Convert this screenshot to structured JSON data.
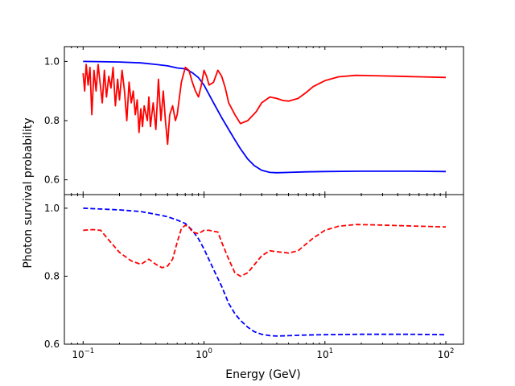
{
  "chart_data": {
    "type": "line",
    "xscale": "log",
    "xlabel": "Energy (GeV)",
    "ylabel": "Photon survival probability",
    "xlim": [
      0.07,
      140
    ],
    "xticks": [
      {
        "value": 0.1,
        "base": "10",
        "exp": "−1"
      },
      {
        "value": 1,
        "base": "10",
        "exp": "0"
      },
      {
        "value": 10,
        "base": "10",
        "exp": "1"
      },
      {
        "value": 100,
        "base": "10",
        "exp": "2"
      }
    ],
    "panels": [
      {
        "name": "top",
        "ylim": [
          0.55,
          1.05
        ],
        "yticks": [
          {
            "value": 0.6,
            "label": "0.6"
          },
          {
            "value": 0.8,
            "label": "0.8"
          },
          {
            "value": 1.0,
            "label": "1.0"
          }
        ],
        "series": [
          {
            "name": "blue-solid",
            "color": "#0000ff",
            "dash": "solid",
            "points": [
              [
                0.1,
                1.0
              ],
              [
                0.2,
                0.998
              ],
              [
                0.3,
                0.995
              ],
              [
                0.4,
                0.99
              ],
              [
                0.5,
                0.985
              ],
              [
                0.6,
                0.978
              ],
              [
                0.7,
                0.975
              ],
              [
                0.8,
                0.962
              ],
              [
                0.9,
                0.945
              ],
              [
                1.0,
                0.92
              ],
              [
                1.2,
                0.86
              ],
              [
                1.4,
                0.81
              ],
              [
                1.6,
                0.77
              ],
              [
                1.8,
                0.735
              ],
              [
                2.0,
                0.705
              ],
              [
                2.3,
                0.67
              ],
              [
                2.6,
                0.648
              ],
              [
                3.0,
                0.632
              ],
              [
                3.5,
                0.625
              ],
              [
                4.0,
                0.624
              ],
              [
                5.0,
                0.625
              ],
              [
                7.0,
                0.627
              ],
              [
                10,
                0.628
              ],
              [
                20,
                0.629
              ],
              [
                50,
                0.629
              ],
              [
                100,
                0.628
              ]
            ]
          },
          {
            "name": "red-solid",
            "color": "#ff0000",
            "dash": "solid",
            "points": [
              [
                0.1,
                0.96
              ],
              [
                0.103,
                0.9
              ],
              [
                0.106,
                0.99
              ],
              [
                0.11,
                0.92
              ],
              [
                0.114,
                0.98
              ],
              [
                0.118,
                0.82
              ],
              [
                0.123,
                0.97
              ],
              [
                0.128,
                0.9
              ],
              [
                0.133,
                0.99
              ],
              [
                0.138,
                0.93
              ],
              [
                0.144,
                0.86
              ],
              [
                0.15,
                0.97
              ],
              [
                0.156,
                0.88
              ],
              [
                0.163,
                0.95
              ],
              [
                0.17,
                0.91
              ],
              [
                0.177,
                0.98
              ],
              [
                0.185,
                0.85
              ],
              [
                0.193,
                0.94
              ],
              [
                0.2,
                0.87
              ],
              [
                0.21,
                0.97
              ],
              [
                0.22,
                0.9
              ],
              [
                0.23,
                0.8
              ],
              [
                0.24,
                0.93
              ],
              [
                0.25,
                0.86
              ],
              [
                0.26,
                0.9
              ],
              [
                0.27,
                0.82
              ],
              [
                0.28,
                0.87
              ],
              [
                0.29,
                0.76
              ],
              [
                0.3,
                0.84
              ],
              [
                0.31,
                0.78
              ],
              [
                0.32,
                0.85
              ],
              [
                0.34,
                0.8
              ],
              [
                0.35,
                0.88
              ],
              [
                0.36,
                0.78
              ],
              [
                0.38,
                0.86
              ],
              [
                0.4,
                0.77
              ],
              [
                0.42,
                0.94
              ],
              [
                0.44,
                0.8
              ],
              [
                0.46,
                0.9
              ],
              [
                0.48,
                0.8
              ],
              [
                0.5,
                0.72
              ],
              [
                0.52,
                0.82
              ],
              [
                0.55,
                0.85
              ],
              [
                0.58,
                0.8
              ],
              [
                0.6,
                0.82
              ],
              [
                0.65,
                0.93
              ],
              [
                0.7,
                0.98
              ],
              [
                0.75,
                0.97
              ],
              [
                0.8,
                0.93
              ],
              [
                0.85,
                0.9
              ],
              [
                0.9,
                0.88
              ],
              [
                0.95,
                0.92
              ],
              [
                1.0,
                0.97
              ],
              [
                1.05,
                0.95
              ],
              [
                1.1,
                0.92
              ],
              [
                1.2,
                0.93
              ],
              [
                1.3,
                0.97
              ],
              [
                1.4,
                0.95
              ],
              [
                1.5,
                0.91
              ],
              [
                1.6,
                0.86
              ],
              [
                1.8,
                0.82
              ],
              [
                2.0,
                0.79
              ],
              [
                2.3,
                0.8
              ],
              [
                2.7,
                0.83
              ],
              [
                3.0,
                0.86
              ],
              [
                3.5,
                0.88
              ],
              [
                4.0,
                0.875
              ],
              [
                4.5,
                0.868
              ],
              [
                5.0,
                0.866
              ],
              [
                6.0,
                0.875
              ],
              [
                7.0,
                0.895
              ],
              [
                8.0,
                0.915
              ],
              [
                10,
                0.935
              ],
              [
                13,
                0.948
              ],
              [
                18,
                0.953
              ],
              [
                25,
                0.952
              ],
              [
                40,
                0.95
              ],
              [
                60,
                0.948
              ],
              [
                100,
                0.946
              ]
            ]
          }
        ]
      },
      {
        "name": "bottom",
        "ylim": [
          0.6,
          1.04
        ],
        "yticks": [
          {
            "value": 0.6,
            "label": "0.6"
          },
          {
            "value": 0.8,
            "label": "0.8"
          },
          {
            "value": 1.0,
            "label": "1.0"
          }
        ],
        "series": [
          {
            "name": "blue-dashed",
            "color": "#0000ff",
            "dash": "dashed",
            "points": [
              [
                0.1,
                1.0
              ],
              [
                0.2,
                0.995
              ],
              [
                0.3,
                0.99
              ],
              [
                0.4,
                0.982
              ],
              [
                0.5,
                0.975
              ],
              [
                0.6,
                0.965
              ],
              [
                0.7,
                0.955
              ],
              [
                0.8,
                0.935
              ],
              [
                0.9,
                0.91
              ],
              [
                1.0,
                0.88
              ],
              [
                1.2,
                0.82
              ],
              [
                1.4,
                0.77
              ],
              [
                1.6,
                0.72
              ],
              [
                1.8,
                0.69
              ],
              [
                2.0,
                0.67
              ],
              [
                2.3,
                0.65
              ],
              [
                2.6,
                0.637
              ],
              [
                3.0,
                0.629
              ],
              [
                3.5,
                0.625
              ],
              [
                4.0,
                0.624
              ],
              [
                5.0,
                0.625
              ],
              [
                7.0,
                0.627
              ],
              [
                10,
                0.628
              ],
              [
                20,
                0.629
              ],
              [
                50,
                0.629
              ],
              [
                100,
                0.628
              ]
            ]
          },
          {
            "name": "red-dashed",
            "color": "#ff0000",
            "dash": "dashed",
            "points": [
              [
                0.1,
                0.935
              ],
              [
                0.12,
                0.937
              ],
              [
                0.14,
                0.935
              ],
              [
                0.16,
                0.91
              ],
              [
                0.2,
                0.87
              ],
              [
                0.25,
                0.845
              ],
              [
                0.3,
                0.835
              ],
              [
                0.35,
                0.85
              ],
              [
                0.4,
                0.835
              ],
              [
                0.45,
                0.825
              ],
              [
                0.5,
                0.83
              ],
              [
                0.55,
                0.85
              ],
              [
                0.6,
                0.9
              ],
              [
                0.65,
                0.94
              ],
              [
                0.7,
                0.95
              ],
              [
                0.75,
                0.945
              ],
              [
                0.8,
                0.93
              ],
              [
                0.9,
                0.925
              ],
              [
                1.0,
                0.935
              ],
              [
                1.1,
                0.935
              ],
              [
                1.2,
                0.932
              ],
              [
                1.3,
                0.93
              ],
              [
                1.4,
                0.9
              ],
              [
                1.6,
                0.85
              ],
              [
                1.8,
                0.81
              ],
              [
                2.0,
                0.8
              ],
              [
                2.3,
                0.81
              ],
              [
                2.7,
                0.84
              ],
              [
                3.0,
                0.86
              ],
              [
                3.5,
                0.875
              ],
              [
                4.0,
                0.872
              ],
              [
                5.0,
                0.868
              ],
              [
                6.0,
                0.875
              ],
              [
                7.0,
                0.895
              ],
              [
                8.0,
                0.912
              ],
              [
                10,
                0.935
              ],
              [
                13,
                0.947
              ],
              [
                18,
                0.952
              ],
              [
                25,
                0.951
              ],
              [
                40,
                0.949
              ],
              [
                60,
                0.947
              ],
              [
                100,
                0.945
              ]
            ]
          }
        ]
      }
    ]
  }
}
